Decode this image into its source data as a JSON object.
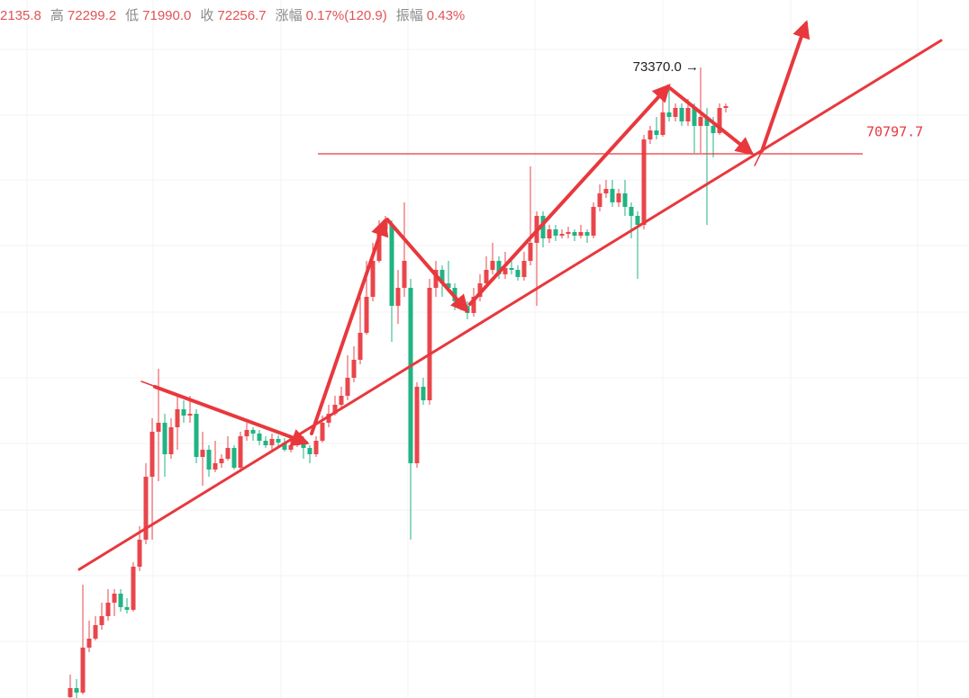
{
  "header": [
    {
      "value": "2135.8"
    },
    {
      "label": "高",
      "value": "72299.2"
    },
    {
      "label": "低",
      "value": "71990.0"
    },
    {
      "label": "收",
      "value": "72256.7"
    },
    {
      "label": "涨幅",
      "value": "0.17%(120.9)"
    },
    {
      "label": "振幅",
      "value": "0.43%"
    }
  ],
  "chart_data": {
    "type": "candlestick",
    "up_color": "#e8464b",
    "down_color": "#21b383",
    "ylim": [
      54583,
      75380
    ],
    "high_marker": {
      "value": 73370,
      "label": "73370.0 →"
    },
    "price_line": 70797.7,
    "open": [
      54610,
      54878,
      54744,
      56084,
      56352,
      56754,
      57022,
      57424,
      57692,
      57290,
      57210,
      58496,
      59300,
      61176,
      62516,
      62784,
      61846,
      62650,
      63186,
      62998,
      63052,
      61766,
      61980,
      61390,
      61578,
      61712,
      62034,
      61444,
      62382,
      62570,
      62462,
      62248,
      62114,
      62302,
      62194,
      61980,
      62114,
      62248,
      62034,
      61846,
      62248,
      62784,
      63052,
      63320,
      63588,
      64124,
      64660,
      65464,
      66536,
      67608,
      68546,
      68680,
      66268,
      66804,
      66804,
      61578,
      63856,
      63454,
      66804,
      67340,
      66938,
      66804,
      66402,
      66268,
      66054,
      66536,
      66938,
      67340,
      67608,
      67206,
      67394,
      67340,
      67126,
      67608,
      68144,
      68948,
      68278,
      68546,
      68358,
      68412,
      68466,
      68358,
      68466,
      68358,
      69216,
      69618,
      69752,
      69350,
      69618,
      69216,
      68948,
      68680,
      71226,
      71494,
      71360,
      72030,
      71896,
      72164,
      71762,
      72164,
      71628,
      71896,
      71628,
      71414,
      72164
    ],
    "high": [
      55280,
      55146,
      57960,
      56888,
      57022,
      57424,
      57826,
      57826,
      57826,
      57558,
      58630,
      59702,
      61578,
      62918,
      64392,
      63052,
      62918,
      63588,
      63454,
      63588,
      63186,
      62516,
      62114,
      62248,
      61846,
      62382,
      62114,
      62516,
      62784,
      62650,
      62570,
      62382,
      62462,
      62409,
      62328,
      62248,
      62382,
      62382,
      62114,
      62382,
      62998,
      63320,
      63588,
      63856,
      64794,
      65062,
      66536,
      67608,
      68144,
      68814,
      68948,
      68814,
      67340,
      69350,
      67072,
      63990,
      64124,
      67072,
      67608,
      67474,
      67608,
      66938,
      66536,
      66402,
      66804,
      67206,
      67742,
      68144,
      67742,
      67876,
      67608,
      67474,
      67876,
      70422,
      69082,
      69082,
      68680,
      68680,
      68546,
      68626,
      68546,
      68680,
      68546,
      69350,
      69886,
      70020,
      70020,
      69752,
      70020,
      69350,
      69082,
      71360,
      71628,
      71896,
      72432,
      72700,
      72298,
      72298,
      72432,
      72298,
      73370,
      72164,
      71896,
      72298,
      72298
    ],
    "low": [
      54583,
      54583,
      54690,
      55950,
      56298,
      56620,
      56888,
      57022,
      57156,
      57102,
      57156,
      58362,
      59166,
      59300,
      61042,
      61176,
      61712,
      61980,
      62784,
      62784,
      61578,
      60908,
      61176,
      61310,
      61444,
      61658,
      61390,
      61310,
      62248,
      62248,
      62114,
      62034,
      61980,
      62087,
      61926,
      61900,
      62060,
      61712,
      61578,
      61766,
      62194,
      62650,
      62998,
      63186,
      63454,
      63990,
      64526,
      65410,
      66402,
      67554,
      68412,
      65196,
      65732,
      66536,
      59300,
      61444,
      63320,
      63320,
      66536,
      66536,
      66670,
      66134,
      66134,
      65866,
      65946,
      66402,
      66858,
      67206,
      67072,
      67072,
      67206,
      67018,
      67018,
      67474,
      66268,
      68010,
      68144,
      68198,
      68278,
      68278,
      68198,
      68278,
      68144,
      68278,
      69082,
      69484,
      69216,
      69216,
      68948,
      68278,
      67072,
      68546,
      71092,
      71226,
      71306,
      71762,
      71762,
      71628,
      71628,
      70824,
      70824,
      68680,
      70690,
      71360,
      72030
    ],
    "close": [
      54878,
      54744,
      56084,
      56352,
      56754,
      57022,
      57424,
      57692,
      57290,
      57210,
      58496,
      59300,
      61176,
      62516,
      62784,
      61846,
      62650,
      63186,
      62998,
      63052,
      61766,
      61980,
      61390,
      61578,
      61712,
      62034,
      61444,
      62382,
      62570,
      62462,
      62248,
      62114,
      62302,
      62194,
      61980,
      62114,
      62248,
      62034,
      61846,
      62248,
      62784,
      63052,
      63320,
      63588,
      64124,
      64660,
      65464,
      66536,
      67608,
      68546,
      68814,
      66268,
      66804,
      67608,
      61578,
      63856,
      63454,
      66804,
      67340,
      66938,
      66804,
      66402,
      66268,
      66054,
      66536,
      66938,
      67340,
      67608,
      67206,
      67394,
      67340,
      67126,
      67608,
      68144,
      68948,
      68278,
      68546,
      68358,
      68412,
      68466,
      68358,
      68466,
      68358,
      69216,
      69618,
      69752,
      69350,
      69618,
      69216,
      68948,
      68680,
      71226,
      71494,
      71360,
      72030,
      71896,
      72164,
      71762,
      72164,
      71628,
      71896,
      71628,
      71414,
      72164,
      72218
    ]
  }
}
